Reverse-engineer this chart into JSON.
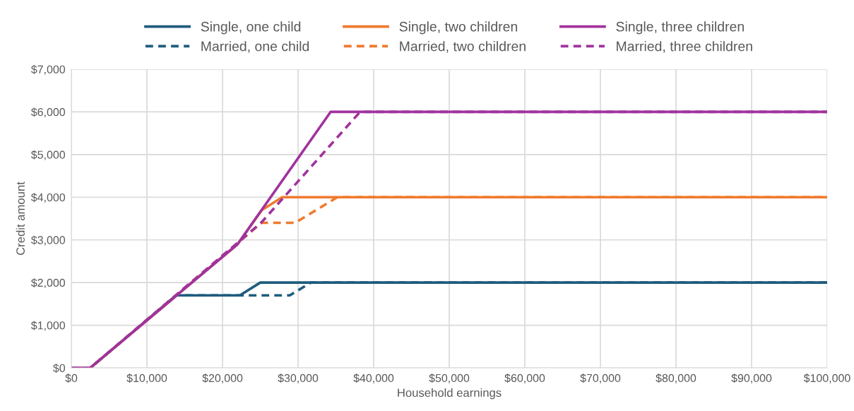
{
  "chart_data": {
    "type": "line",
    "xlabel": "Household earnings",
    "ylabel": "Credit amount",
    "series": [
      {
        "name": "Single, one child",
        "color": "#1f5c7e",
        "line_style": "solid",
        "x": [
          0,
          2500,
          13833,
          22300,
          25000,
          100000
        ],
        "values": [
          0,
          0,
          1700,
          1700,
          2000,
          2000
        ]
      },
      {
        "name": "Married, one child",
        "color": "#1f5c7e",
        "line_style": "dashed",
        "x": [
          0,
          2500,
          13833,
          28900,
          31700,
          100000
        ],
        "values": [
          0,
          0,
          1700,
          1700,
          2000,
          2000
        ]
      },
      {
        "name": "Single, two children",
        "color": "#f07a2e",
        "line_style": "solid",
        "x": [
          0,
          2500,
          22000,
          25200,
          27900,
          100000
        ],
        "values": [
          0,
          0,
          2900,
          3700,
          4000,
          4000
        ]
      },
      {
        "name": "Married, two children",
        "color": "#f07a2e",
        "line_style": "dashed",
        "x": [
          0,
          2500,
          25167,
          29600,
          35200,
          100000
        ],
        "values": [
          0,
          0,
          3400,
          3400,
          4000,
          4000
        ]
      },
      {
        "name": "Single, three children",
        "color": "#a0339e",
        "line_style": "solid",
        "x": [
          0,
          2500,
          22000,
          34300,
          100000
        ],
        "values": [
          0,
          0,
          2900,
          6000,
          6000
        ]
      },
      {
        "name": "Married, three children",
        "color": "#a0339e",
        "line_style": "dashed",
        "x": [
          0,
          2500,
          25100,
          38200,
          100000
        ],
        "values": [
          0,
          0,
          3400,
          6000,
          6000
        ]
      }
    ],
    "xlim": [
      0,
      100000
    ],
    "xticks": [
      {
        "value": 0,
        "label": "$0"
      },
      {
        "value": 10000,
        "label": "$10,000"
      },
      {
        "value": 20000,
        "label": "$20,000"
      },
      {
        "value": 30000,
        "label": "$30,000"
      },
      {
        "value": 40000,
        "label": "$40,000"
      },
      {
        "value": 50000,
        "label": "$50,000"
      },
      {
        "value": 60000,
        "label": "$60,000"
      },
      {
        "value": 70000,
        "label": "$70,000"
      },
      {
        "value": 80000,
        "label": "$80,000"
      },
      {
        "value": 90000,
        "label": "$90,000"
      },
      {
        "value": 100000,
        "label": "$100,000"
      }
    ],
    "ylim": [
      0,
      7000
    ],
    "yticks": [
      {
        "value": 0,
        "label": "$0"
      },
      {
        "value": 1000,
        "label": "$1,000"
      },
      {
        "value": 2000,
        "label": "$2,000"
      },
      {
        "value": 3000,
        "label": "$3,000"
      },
      {
        "value": 4000,
        "label": "$4,000"
      },
      {
        "value": 5000,
        "label": "$5,000"
      },
      {
        "value": 6000,
        "label": "$6,000"
      },
      {
        "value": 7000,
        "label": "$7,000"
      }
    ],
    "grid": true,
    "legend": "top"
  }
}
